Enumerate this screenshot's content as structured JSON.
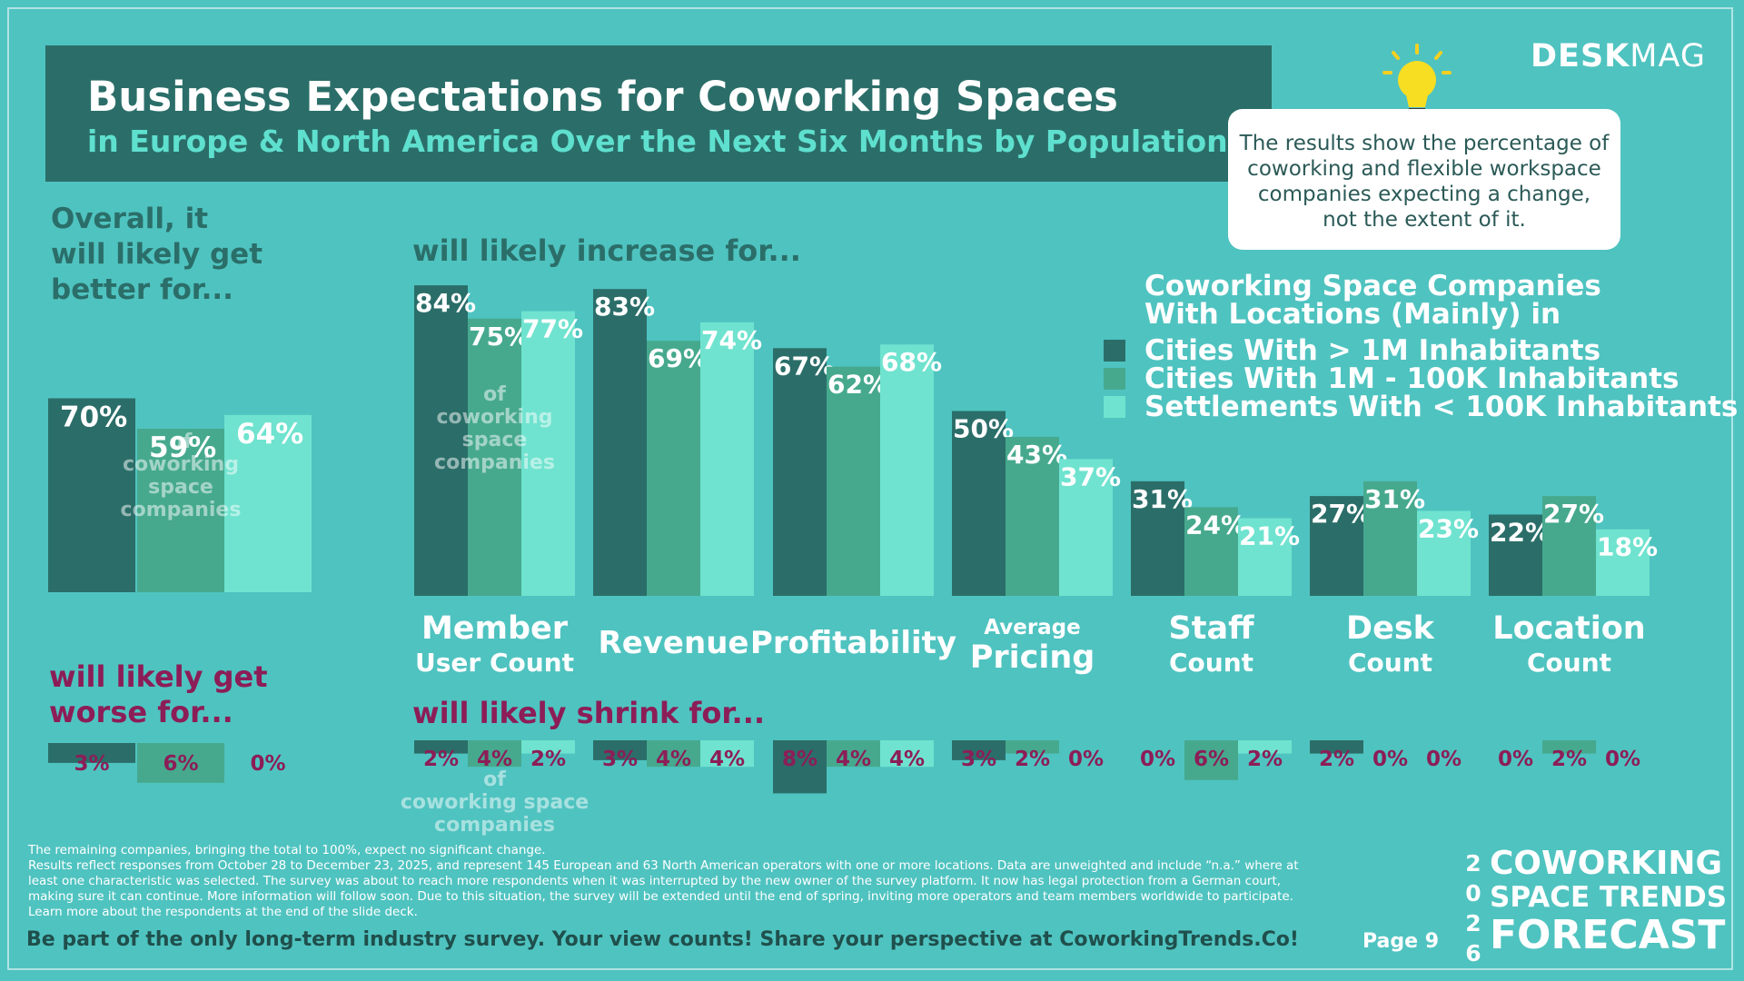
{
  "header": {
    "title": "Business Expectations for Coworking Spaces",
    "subtitle": "in Europe & North America Over the Next Six Months by Population Size"
  },
  "brand": {
    "part1": "DESK",
    "part2": "MAG"
  },
  "note": "The results show the percentage of coworking and flexible workspace companies expecting a change, not the extent of it.",
  "sections": {
    "better": [
      "Overall, it",
      "will likely get",
      "better for..."
    ],
    "increase": "will likely increase for...",
    "worse": [
      "will likely get",
      "worse for..."
    ],
    "shrink": "will likely shrink for..."
  },
  "legend": {
    "title": [
      "Coworking Space Companies",
      "With Locations (Mainly) in"
    ],
    "items": [
      {
        "label": "Cities With > 1M Inhabitants",
        "color": "#2b6e69"
      },
      {
        "label": "Cities With 1M - 100K Inhabitants",
        "color": "#46a98e"
      },
      {
        "label": "Settlements With < 100K Inhabitants",
        "color": "#6fe3cf"
      }
    ]
  },
  "chart_data": {
    "type": "bar",
    "series": [
      {
        "name": "Cities With > 1M Inhabitants",
        "color": "#2b6e69"
      },
      {
        "name": "Cities With 1M - 100K Inhabitants",
        "color": "#46a98e"
      },
      {
        "name": "Settlements With < 100K Inhabitants",
        "color": "#6fe3cf"
      }
    ],
    "overall": {
      "better": [
        70,
        59,
        64
      ],
      "worse": [
        3,
        6,
        0
      ],
      "bar_note": [
        "of",
        "coworking",
        "space",
        "companies"
      ]
    },
    "categories": [
      {
        "small": "Member",
        "big": "User Count",
        "emphasis": "first",
        "increase": [
          84,
          75,
          77
        ],
        "shrink": [
          2,
          4,
          2
        ]
      },
      {
        "small": "Revenue",
        "big": "",
        "emphasis": "single",
        "increase": [
          83,
          69,
          74
        ],
        "shrink": [
          3,
          4,
          4
        ]
      },
      {
        "small": "Profitability",
        "big": "",
        "emphasis": "single",
        "increase": [
          67,
          62,
          68
        ],
        "shrink": [
          8,
          4,
          4
        ]
      },
      {
        "small": "Average",
        "big": "Pricing",
        "emphasis": "second",
        "increase": [
          50,
          43,
          37
        ],
        "shrink": [
          3,
          2,
          0
        ]
      },
      {
        "small": "Staff",
        "big": "Count",
        "emphasis": "first",
        "increase": [
          31,
          24,
          21
        ],
        "shrink": [
          0,
          6,
          2
        ]
      },
      {
        "small": "Desk",
        "big": "Count",
        "emphasis": "first",
        "increase": [
          27,
          31,
          23
        ],
        "shrink": [
          2,
          0,
          0
        ]
      },
      {
        "small": "Location",
        "big": "Count",
        "emphasis": "first",
        "increase": [
          22,
          27,
          18
        ],
        "shrink": [
          0,
          2,
          0
        ]
      }
    ],
    "increase_bar_note": [
      "of",
      "coworking",
      "space",
      "companies"
    ],
    "shrink_note": [
      "of",
      "coworking space",
      "companies"
    ],
    "value_suffix": "%"
  },
  "footnote": [
    "The remaining companies, bringing the total to 100%, expect no significant change.",
    "Results reflect responses from October 28 to December 23, 2025, and represent 145 European and 63 North American operators with one or more locations. Data are unweighted and include “n.a.” where at",
    "least one characteristic was selected. The survey was about to reach more respondents when it was interrupted by the new owner of the survey platform. It now has legal protection from a German court,",
    "making sure it can continue. More information will follow soon. Due to this situation, the survey will be extended until the end of spring, inviting more operators and team members worldwide to participate.",
    "Learn more about the respondents at the end of the slide deck."
  ],
  "cta": "Be part of the only long-term industry survey. Your view counts! Share your perspective at CoworkingTrends.Co!",
  "page": "Page  9",
  "forecast": {
    "year_digits": [
      "2",
      "0",
      "2",
      "6"
    ],
    "line1": "COWORKING",
    "line2": "SPACE TRENDS",
    "line3": "FORECAST"
  }
}
